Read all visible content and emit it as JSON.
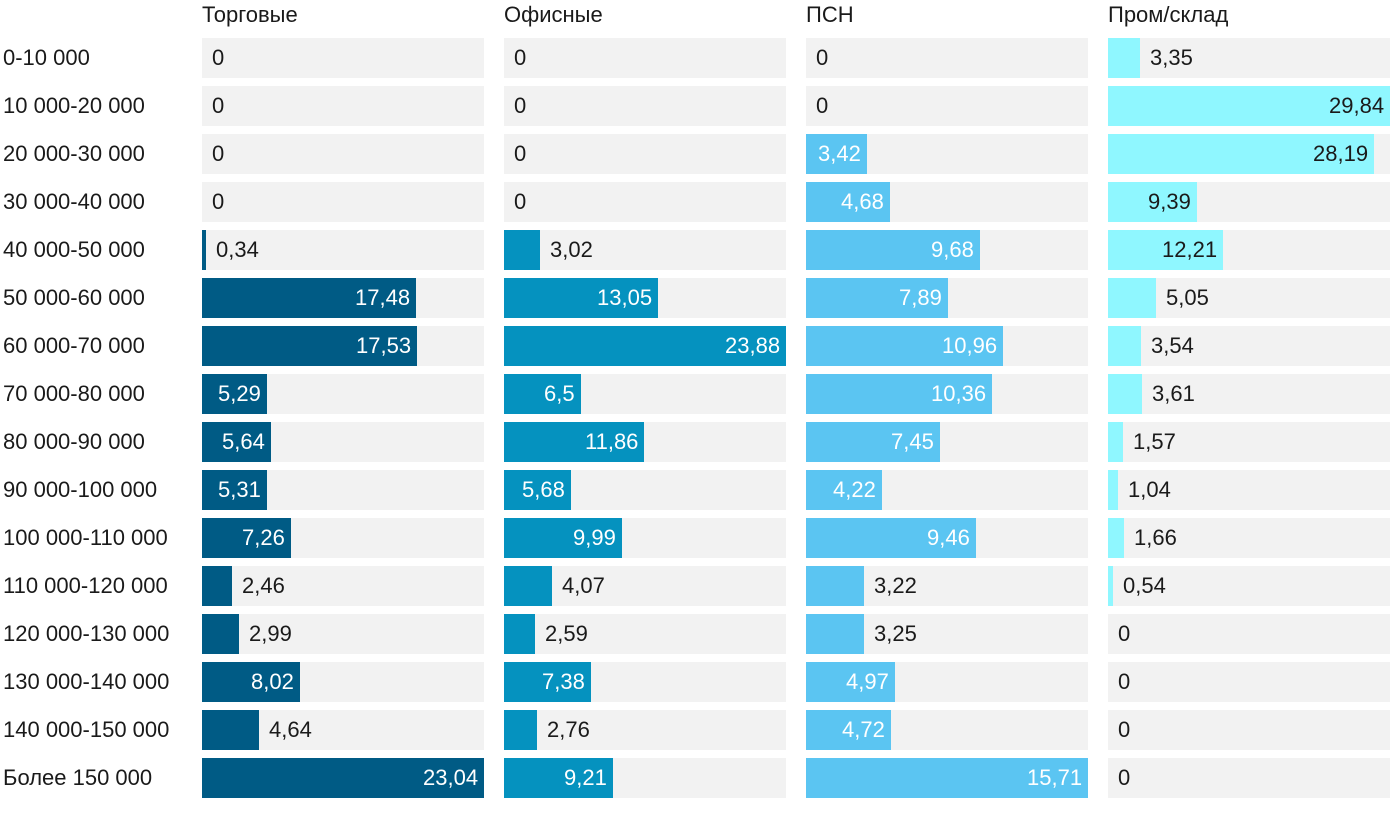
{
  "chart_data": {
    "type": "bar",
    "orientation": "horizontal",
    "categories": [
      "0-10 000",
      "10 000-20 000",
      "20 000-30 000",
      "30 000-40 000",
      "40 000-50 000",
      "50 000-60 000",
      "60 000-70 000",
      "70 000-80 000",
      "80 000-90 000",
      "90 000-100 000",
      "100 000-110 000",
      "110 000-120 000",
      "120 000-130 000",
      "130 000-140 000",
      "140 000-150 000",
      "Более 150 000"
    ],
    "series": [
      {
        "name": "Торговые",
        "color": "#005b85",
        "values": [
          0,
          0,
          0,
          0,
          0.34,
          17.48,
          17.53,
          5.29,
          5.64,
          5.31,
          7.26,
          2.46,
          2.99,
          8.02,
          4.64,
          23.04
        ],
        "labels": [
          "0",
          "0",
          "0",
          "0",
          "0,34",
          "17,48",
          "17,53",
          "5,29",
          "5,64",
          "5,31",
          "7,26",
          "2,46",
          "2,99",
          "8,02",
          "4,64",
          "23,04"
        ],
        "xlim": [
          0,
          23.04
        ]
      },
      {
        "name": "Офисные",
        "color": "#0592bf",
        "values": [
          0,
          0,
          0,
          0,
          3.02,
          13.05,
          23.88,
          6.5,
          11.86,
          5.68,
          9.99,
          4.07,
          2.59,
          7.38,
          2.76,
          9.21
        ],
        "labels": [
          "0",
          "0",
          "0",
          "0",
          "3,02",
          "13,05",
          "23,88",
          "6,5",
          "11,86",
          "5,68",
          "9,99",
          "4,07",
          "2,59",
          "7,38",
          "2,76",
          "9,21"
        ],
        "xlim": [
          0,
          23.88
        ]
      },
      {
        "name": "ПСН",
        "color": "#5bc5f2",
        "values": [
          0,
          0,
          3.42,
          4.68,
          9.68,
          7.89,
          10.96,
          10.36,
          7.45,
          4.22,
          9.46,
          3.22,
          3.25,
          4.97,
          4.72,
          15.71
        ],
        "labels": [
          "0",
          "0",
          "3,42",
          "4,68",
          "9,68",
          "7,89",
          "10,96",
          "10,36",
          "7,45",
          "4,22",
          "9,46",
          "3,22",
          "3,25",
          "4,97",
          "4,72",
          "15,71"
        ],
        "xlim": [
          0,
          15.71
        ]
      },
      {
        "name": "Пром/склад",
        "color": "#8ff7ff",
        "values": [
          3.35,
          29.84,
          28.19,
          9.39,
          12.21,
          5.05,
          3.54,
          3.61,
          1.57,
          1.04,
          1.66,
          0.54,
          0,
          0,
          0,
          0
        ],
        "labels": [
          "3,35",
          "29,84",
          "28,19",
          "9,39",
          "12,21",
          "5,05",
          "3,54",
          "3,61",
          "1,57",
          "1,04",
          "1,66",
          "0,54",
          "0",
          "0",
          "0",
          "0"
        ],
        "xlim": [
          0,
          29.84
        ]
      }
    ],
    "title": "",
    "xlabel": "",
    "ylabel": "",
    "grid": false,
    "legend": "none"
  }
}
